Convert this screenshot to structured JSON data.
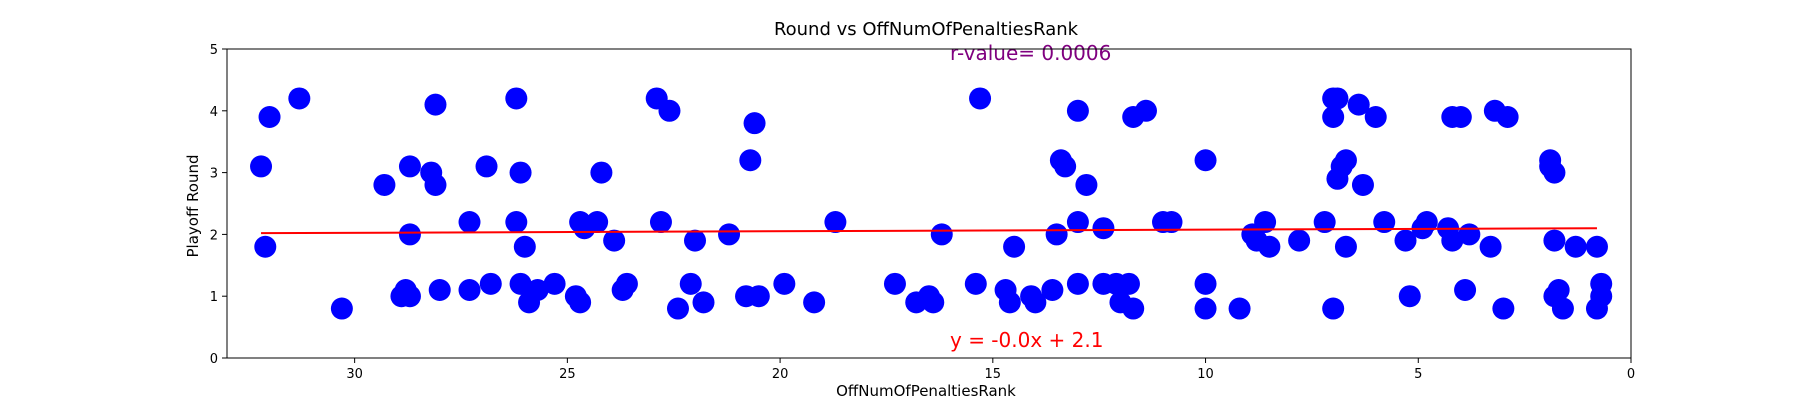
{
  "chart_data": {
    "type": "scatter",
    "title": "Round vs OffNumOfPenaltiesRank",
    "xlabel": "OffNumOfPenaltiesRank",
    "ylabel": "Playoff Round",
    "xlim": [
      33,
      0
    ],
    "ylim": [
      0,
      5
    ],
    "x_ticks": [
      30,
      25,
      20,
      15,
      10,
      5,
      0
    ],
    "y_ticks": [
      0,
      1,
      2,
      3,
      4,
      5
    ],
    "grid": false,
    "point_color": "#0000ff",
    "line_color": "#ff0000",
    "r_value_color": "#800080",
    "annotations": {
      "r_value": "r-value= 0.0006",
      "equation": "y = -0.0x + 2.1"
    },
    "regression": {
      "x": [
        32.2,
        0.8
      ],
      "y": [
        2.02,
        2.1
      ]
    },
    "points": [
      {
        "x": 32.2,
        "y": 3.1
      },
      {
        "x": 32.1,
        "y": 1.8
      },
      {
        "x": 32.0,
        "y": 3.9
      },
      {
        "x": 31.3,
        "y": 4.2
      },
      {
        "x": 30.3,
        "y": 0.8
      },
      {
        "x": 29.3,
        "y": 2.8
      },
      {
        "x": 28.9,
        "y": 1.0
      },
      {
        "x": 28.8,
        "y": 1.1
      },
      {
        "x": 28.7,
        "y": 3.1
      },
      {
        "x": 28.7,
        "y": 2.0
      },
      {
        "x": 28.7,
        "y": 1.0
      },
      {
        "x": 28.2,
        "y": 3.0
      },
      {
        "x": 28.1,
        "y": 2.8
      },
      {
        "x": 28.1,
        "y": 4.1
      },
      {
        "x": 28.0,
        "y": 1.1
      },
      {
        "x": 27.3,
        "y": 2.2
      },
      {
        "x": 27.3,
        "y": 1.1
      },
      {
        "x": 26.9,
        "y": 3.1
      },
      {
        "x": 26.8,
        "y": 1.2
      },
      {
        "x": 26.2,
        "y": 4.2
      },
      {
        "x": 26.2,
        "y": 2.2
      },
      {
        "x": 26.1,
        "y": 3.0
      },
      {
        "x": 26.1,
        "y": 1.2
      },
      {
        "x": 26.0,
        "y": 1.8
      },
      {
        "x": 25.9,
        "y": 0.9
      },
      {
        "x": 25.7,
        "y": 1.1
      },
      {
        "x": 25.3,
        "y": 1.2
      },
      {
        "x": 24.8,
        "y": 1.0
      },
      {
        "x": 24.7,
        "y": 0.9
      },
      {
        "x": 24.7,
        "y": 2.2
      },
      {
        "x": 24.6,
        "y": 2.1
      },
      {
        "x": 24.3,
        "y": 2.2
      },
      {
        "x": 24.2,
        "y": 3.0
      },
      {
        "x": 23.9,
        "y": 1.9
      },
      {
        "x": 23.7,
        "y": 1.1
      },
      {
        "x": 23.6,
        "y": 1.2
      },
      {
        "x": 22.9,
        "y": 4.2
      },
      {
        "x": 22.8,
        "y": 2.2
      },
      {
        "x": 22.6,
        "y": 4.0
      },
      {
        "x": 22.4,
        "y": 0.8
      },
      {
        "x": 22.1,
        "y": 1.2
      },
      {
        "x": 22.0,
        "y": 1.9
      },
      {
        "x": 21.8,
        "y": 0.9
      },
      {
        "x": 21.2,
        "y": 2.0
      },
      {
        "x": 20.8,
        "y": 1.0
      },
      {
        "x": 20.7,
        "y": 3.2
      },
      {
        "x": 20.6,
        "y": 3.8
      },
      {
        "x": 20.5,
        "y": 1.0
      },
      {
        "x": 19.9,
        "y": 1.2
      },
      {
        "x": 19.2,
        "y": 0.9
      },
      {
        "x": 18.7,
        "y": 2.2
      },
      {
        "x": 17.3,
        "y": 1.2
      },
      {
        "x": 16.8,
        "y": 0.9
      },
      {
        "x": 16.5,
        "y": 1.0
      },
      {
        "x": 16.4,
        "y": 0.9
      },
      {
        "x": 16.2,
        "y": 2.0
      },
      {
        "x": 15.4,
        "y": 1.2
      },
      {
        "x": 15.3,
        "y": 4.2
      },
      {
        "x": 14.7,
        "y": 1.1
      },
      {
        "x": 14.6,
        "y": 0.9
      },
      {
        "x": 14.5,
        "y": 1.8
      },
      {
        "x": 14.1,
        "y": 1.0
      },
      {
        "x": 14.0,
        "y": 0.9
      },
      {
        "x": 13.6,
        "y": 1.1
      },
      {
        "x": 13.5,
        "y": 2.0
      },
      {
        "x": 13.4,
        "y": 3.2
      },
      {
        "x": 13.3,
        "y": 3.1
      },
      {
        "x": 13.0,
        "y": 4.0
      },
      {
        "x": 13.0,
        "y": 2.2
      },
      {
        "x": 13.0,
        "y": 1.2
      },
      {
        "x": 12.8,
        "y": 2.8
      },
      {
        "x": 12.4,
        "y": 2.1
      },
      {
        "x": 12.4,
        "y": 1.2
      },
      {
        "x": 12.1,
        "y": 1.2
      },
      {
        "x": 12.0,
        "y": 0.9
      },
      {
        "x": 11.8,
        "y": 1.2
      },
      {
        "x": 11.7,
        "y": 3.9
      },
      {
        "x": 11.7,
        "y": 0.8
      },
      {
        "x": 11.4,
        "y": 4.0
      },
      {
        "x": 11.0,
        "y": 2.2
      },
      {
        "x": 10.8,
        "y": 2.2
      },
      {
        "x": 10.0,
        "y": 3.2
      },
      {
        "x": 10.0,
        "y": 1.2
      },
      {
        "x": 10.0,
        "y": 0.8
      },
      {
        "x": 9.2,
        "y": 0.8
      },
      {
        "x": 8.9,
        "y": 2.0
      },
      {
        "x": 8.8,
        "y": 1.9
      },
      {
        "x": 8.6,
        "y": 2.2
      },
      {
        "x": 8.5,
        "y": 1.8
      },
      {
        "x": 7.8,
        "y": 1.9
      },
      {
        "x": 7.2,
        "y": 2.2
      },
      {
        "x": 7.0,
        "y": 4.2
      },
      {
        "x": 7.0,
        "y": 3.9
      },
      {
        "x": 6.9,
        "y": 4.2
      },
      {
        "x": 6.9,
        "y": 2.9
      },
      {
        "x": 6.8,
        "y": 3.1
      },
      {
        "x": 6.7,
        "y": 3.2
      },
      {
        "x": 6.7,
        "y": 1.8
      },
      {
        "x": 7.0,
        "y": 0.8
      },
      {
        "x": 6.4,
        "y": 4.1
      },
      {
        "x": 6.3,
        "y": 2.8
      },
      {
        "x": 6.0,
        "y": 3.9
      },
      {
        "x": 5.8,
        "y": 2.2
      },
      {
        "x": 5.3,
        "y": 1.9
      },
      {
        "x": 5.2,
        "y": 1.0
      },
      {
        "x": 4.9,
        "y": 2.1
      },
      {
        "x": 4.8,
        "y": 2.2
      },
      {
        "x": 4.3,
        "y": 2.1
      },
      {
        "x": 4.2,
        "y": 1.9
      },
      {
        "x": 4.2,
        "y": 3.9
      },
      {
        "x": 4.0,
        "y": 3.9
      },
      {
        "x": 3.9,
        "y": 1.1
      },
      {
        "x": 3.8,
        "y": 2.0
      },
      {
        "x": 3.3,
        "y": 1.8
      },
      {
        "x": 3.2,
        "y": 4.0
      },
      {
        "x": 2.9,
        "y": 3.9
      },
      {
        "x": 3.0,
        "y": 0.8
      },
      {
        "x": 1.9,
        "y": 3.2
      },
      {
        "x": 1.9,
        "y": 3.1
      },
      {
        "x": 1.8,
        "y": 3.0
      },
      {
        "x": 1.8,
        "y": 1.9
      },
      {
        "x": 1.8,
        "y": 1.0
      },
      {
        "x": 1.7,
        "y": 1.1
      },
      {
        "x": 1.6,
        "y": 0.8
      },
      {
        "x": 1.3,
        "y": 1.8
      },
      {
        "x": 0.8,
        "y": 1.8
      },
      {
        "x": 0.8,
        "y": 0.8
      },
      {
        "x": 0.7,
        "y": 1.0
      },
      {
        "x": 0.7,
        "y": 1.2
      }
    ]
  }
}
